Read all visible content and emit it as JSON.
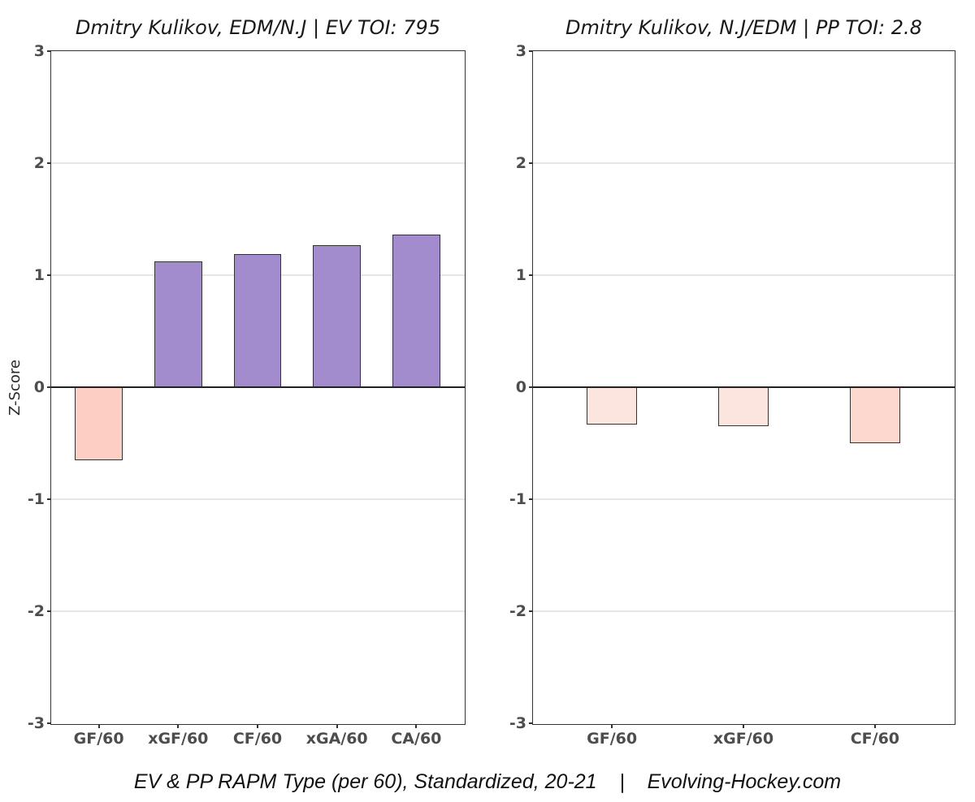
{
  "figure": {
    "background": "#ffffff",
    "caption": "EV & PP RAPM Type (per 60), Standardized, 20-21    |    Evolving-Hockey.com"
  },
  "colors": {
    "positive_purple": "#a38cce",
    "negative_pink_strong": "#fdcfc4",
    "negative_pink_light": "#fce5de",
    "negative_pink_medium": "#fcd8ce",
    "axis_border": "#333333",
    "zero_line": "#222222",
    "gridline": "#e6e6e6",
    "tick_text": "#4d4d4d",
    "title_text": "#1a1a1a"
  },
  "chart_data": [
    {
      "type": "bar",
      "title": "Dmitry Kulikov, EDM/N.J  |  EV TOI: 795",
      "categories": [
        "GF/60",
        "xGF/60",
        "CF/60",
        "xGA/60",
        "CA/60"
      ],
      "values": [
        -0.65,
        1.12,
        1.19,
        1.27,
        1.36
      ],
      "bar_colors": [
        "#fdcfc4",
        "#a38cce",
        "#a38cce",
        "#a38cce",
        "#a38cce"
      ],
      "ylabel": "Z-Score",
      "ylim": [
        -3,
        3
      ],
      "yticks": [
        3,
        2,
        1,
        0,
        -1,
        -2,
        -3
      ],
      "grid": "horizontal-major",
      "legend": "none",
      "bar_width_ratio": 0.6
    },
    {
      "type": "bar",
      "title": "Dmitry Kulikov, N.J/EDM  |  PP TOI: 2.8",
      "categories": [
        "GF/60",
        "xGF/60",
        "CF/60"
      ],
      "values": [
        -0.33,
        -0.35,
        -0.5
      ],
      "bar_colors": [
        "#fce5de",
        "#fce5de",
        "#fcd8ce"
      ],
      "ylabel": "",
      "ylim": [
        -3,
        3
      ],
      "yticks": [
        3,
        2,
        1,
        0,
        -1,
        -2,
        -3
      ],
      "grid": "horizontal-major",
      "legend": "none",
      "bar_width_ratio": 0.38
    }
  ]
}
